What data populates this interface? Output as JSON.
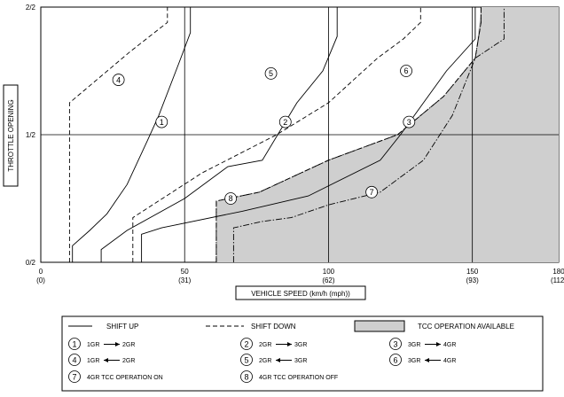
{
  "chart_data": {
    "type": "line",
    "xlabel": "VEHICLE SPEED (km/h (mph))",
    "ylabel": "THROTTLE OPENING",
    "x_ticks": [
      {
        "value": 0,
        "label": "0",
        "sublabel": "(0)"
      },
      {
        "value": 50,
        "label": "50",
        "sublabel": "(31)"
      },
      {
        "value": 100,
        "label": "100",
        "sublabel": "(62)"
      },
      {
        "value": 150,
        "label": "150",
        "sublabel": "(93)"
      },
      {
        "value": 180,
        "label": "180",
        "sublabel": "(112)"
      }
    ],
    "y_ticks": [
      {
        "value": 0,
        "label": "0/2"
      },
      {
        "value": 1,
        "label": "1/2"
      },
      {
        "value": 2,
        "label": "2/2"
      }
    ],
    "xlim": [
      0,
      180
    ],
    "ylim": [
      0,
      2
    ],
    "tcc_area": [
      [
        61,
        0
      ],
      [
        61,
        0.48
      ],
      [
        76,
        0.55
      ],
      [
        100,
        0.8
      ],
      [
        124,
        1.0
      ],
      [
        140,
        1.3
      ],
      [
        151,
        1.6
      ],
      [
        153,
        2.0
      ],
      [
        180,
        2.0
      ],
      [
        180,
        0
      ]
    ],
    "series": [
      {
        "name": "1",
        "style": "solid",
        "points": [
          [
            11,
            0
          ],
          [
            11,
            0.13
          ],
          [
            17,
            0.25
          ],
          [
            23,
            0.38
          ],
          [
            30,
            0.61
          ],
          [
            37,
            0.95
          ],
          [
            41,
            1.15
          ],
          [
            48,
            1.56
          ],
          [
            52,
            1.8
          ],
          [
            52,
            2.0
          ]
        ]
      },
      {
        "name": "2",
        "style": "solid",
        "points": [
          [
            21,
            0
          ],
          [
            21,
            0.1
          ],
          [
            30,
            0.25
          ],
          [
            50,
            0.5
          ],
          [
            65,
            0.75
          ],
          [
            77,
            0.8
          ],
          [
            89,
            1.25
          ],
          [
            98,
            1.5
          ],
          [
            103,
            1.77
          ],
          [
            103,
            2.0
          ]
        ]
      },
      {
        "name": "3",
        "style": "solid",
        "points": [
          [
            35,
            0
          ],
          [
            35,
            0.22
          ],
          [
            42,
            0.27
          ],
          [
            70,
            0.4
          ],
          [
            93,
            0.52
          ],
          [
            118,
            0.8
          ],
          [
            125,
            1.0
          ],
          [
            133,
            1.25
          ],
          [
            141,
            1.5
          ],
          [
            151,
            1.75
          ],
          [
            151,
            2.0
          ]
        ]
      },
      {
        "name": "4",
        "style": "dashed",
        "points": [
          [
            10,
            0
          ],
          [
            10,
            1.25
          ],
          [
            31,
            1.65
          ],
          [
            44,
            1.88
          ],
          [
            44,
            2.0
          ]
        ]
      },
      {
        "name": "5",
        "style": "dashed",
        "points": [
          [
            32,
            0
          ],
          [
            32,
            0.35
          ],
          [
            56,
            0.7
          ],
          [
            82,
            1.0
          ],
          [
            100,
            1.25
          ],
          [
            117,
            1.6
          ],
          [
            126,
            1.75
          ],
          [
            132,
            1.88
          ],
          [
            132,
            2.0
          ]
        ]
      },
      {
        "name": "6",
        "style": "dashed",
        "points": [
          [
            61,
            0
          ],
          [
            61,
            0.48
          ],
          [
            76,
            0.55
          ],
          [
            100,
            0.8
          ],
          [
            124,
            1.0
          ],
          [
            140,
            1.3
          ],
          [
            151,
            1.6
          ],
          [
            153,
            1.88
          ],
          [
            153,
            2.0
          ]
        ]
      },
      {
        "name": "7",
        "style": "dashdot",
        "points": [
          [
            67,
            0
          ],
          [
            67,
            0.27
          ],
          [
            77,
            0.32
          ],
          [
            87,
            0.35
          ],
          [
            100,
            0.45
          ],
          [
            118,
            0.55
          ],
          [
            133,
            0.8
          ],
          [
            143,
            1.15
          ],
          [
            151,
            1.6
          ],
          [
            161,
            1.75
          ],
          [
            161,
            2.0
          ]
        ]
      },
      {
        "name": "8",
        "style": "dashdot",
        "points": [
          [
            61,
            0
          ],
          [
            61,
            0.48
          ],
          [
            76,
            0.55
          ],
          [
            100,
            0.8
          ],
          [
            124,
            1.0
          ],
          [
            140,
            1.3
          ],
          [
            151,
            1.6
          ],
          [
            153,
            1.88
          ],
          [
            153,
            2.0
          ]
        ]
      }
    ],
    "markers": [
      {
        "label": "1",
        "x": 42,
        "y": 1.1
      },
      {
        "label": "2",
        "x": 85,
        "y": 1.1
      },
      {
        "label": "3",
        "x": 128,
        "y": 1.1
      },
      {
        "label": "4",
        "x": 27,
        "y": 1.43
      },
      {
        "label": "5",
        "x": 80,
        "y": 1.48
      },
      {
        "label": "6",
        "x": 127,
        "y": 1.5
      },
      {
        "label": "7",
        "x": 115,
        "y": 0.55
      },
      {
        "label": "8",
        "x": 66,
        "y": 0.5
      }
    ]
  },
  "legend": {
    "shift_up": "SHIFT UP",
    "shift_down": "SHIFT DOWN",
    "tcc": "TCC OPERATION AVAILABLE",
    "items": [
      {
        "num": "1",
        "from": "1GR",
        "to": "2GR",
        "dir": "right"
      },
      {
        "num": "2",
        "from": "2GR",
        "to": "3GR",
        "dir": "right"
      },
      {
        "num": "3",
        "from": "3GR",
        "to": "4GR",
        "dir": "right"
      },
      {
        "num": "4",
        "from": "1GR",
        "to": "2GR",
        "dir": "left"
      },
      {
        "num": "5",
        "from": "2GR",
        "to": "3GR",
        "dir": "left"
      },
      {
        "num": "6",
        "from": "3GR",
        "to": "4GR",
        "dir": "left"
      },
      {
        "num": "7",
        "text": "4GR TCC OPERATION ON"
      },
      {
        "num": "8",
        "text": "4GR TCC OPERATION OFF"
      }
    ]
  }
}
